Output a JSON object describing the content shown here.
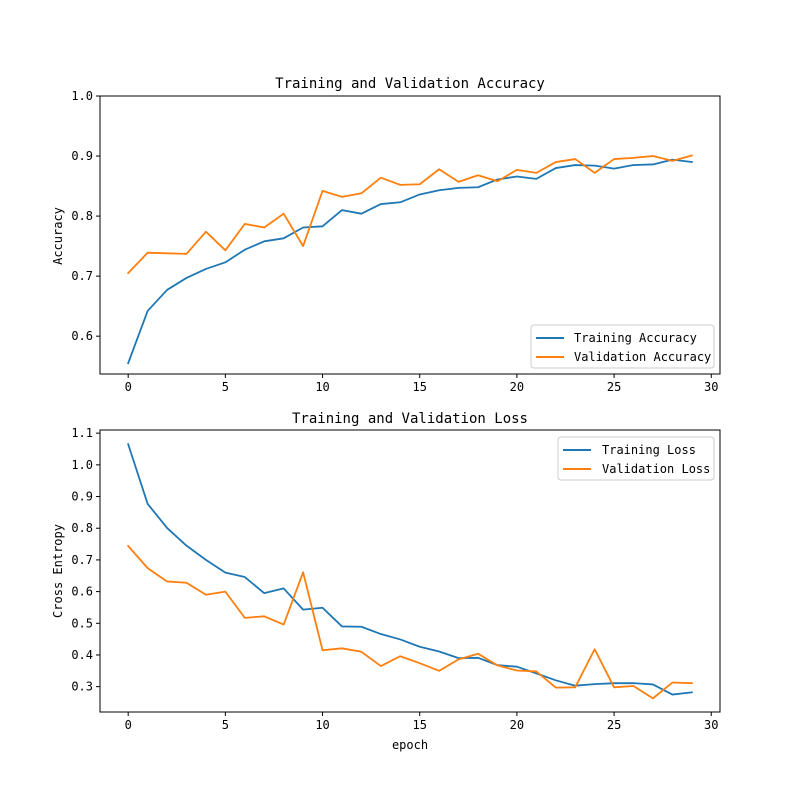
{
  "chart_data": [
    {
      "type": "line",
      "title": "Training and Validation Accuracy",
      "xlabel": "",
      "ylabel": "Accuracy",
      "xlim": [
        -1.45,
        30.45
      ],
      "ylim": [
        0.537,
        1.0
      ],
      "xticks": [
        0,
        5,
        10,
        15,
        20,
        25,
        30
      ],
      "xtick_labels": [
        "0",
        "5",
        "10",
        "15",
        "20",
        "25",
        "30"
      ],
      "yticks": [
        0.6,
        0.7,
        0.8,
        0.9,
        1.0
      ],
      "ytick_labels": [
        "0.6",
        "0.7",
        "0.8",
        "0.9",
        "1.0"
      ],
      "legend_position": "lower-right",
      "x": [
        0,
        1,
        2,
        3,
        4,
        5,
        6,
        7,
        8,
        9,
        10,
        11,
        12,
        13,
        14,
        15,
        16,
        17,
        18,
        19,
        20,
        21,
        22,
        23,
        24,
        25,
        26,
        27,
        28,
        29
      ],
      "series": [
        {
          "name": "Training Accuracy",
          "color": "#1f77b4",
          "values": [
            0.555,
            0.642,
            0.677,
            0.697,
            0.712,
            0.723,
            0.744,
            0.758,
            0.763,
            0.781,
            0.783,
            0.81,
            0.804,
            0.82,
            0.823,
            0.836,
            0.843,
            0.847,
            0.848,
            0.861,
            0.866,
            0.862,
            0.88,
            0.885,
            0.884,
            0.879,
            0.885,
            0.886,
            0.894,
            0.89
          ]
        },
        {
          "name": "Validation Accuracy",
          "color": "#ff7f0e",
          "values": [
            0.705,
            0.739,
            0.738,
            0.737,
            0.774,
            0.743,
            0.787,
            0.781,
            0.804,
            0.75,
            0.842,
            0.832,
            0.838,
            0.864,
            0.852,
            0.853,
            0.878,
            0.857,
            0.868,
            0.858,
            0.877,
            0.872,
            0.89,
            0.895,
            0.872,
            0.895,
            0.897,
            0.9,
            0.892,
            0.901
          ]
        }
      ]
    },
    {
      "type": "line",
      "title": "Training and Validation Loss",
      "xlabel": "epoch",
      "ylabel": "Cross Entropy",
      "xlim": [
        -1.45,
        30.45
      ],
      "ylim": [
        0.22,
        1.11
      ],
      "xticks": [
        0,
        5,
        10,
        15,
        20,
        25,
        30
      ],
      "xtick_labels": [
        "0",
        "5",
        "10",
        "15",
        "20",
        "25",
        "30"
      ],
      "yticks": [
        0.3,
        0.4,
        0.5,
        0.6,
        0.7,
        0.8,
        0.9,
        1.0,
        1.1
      ],
      "ytick_labels": [
        "0.3",
        "0.4",
        "0.5",
        "0.6",
        "0.7",
        "0.8",
        "0.9",
        "1.0",
        "1.1"
      ],
      "legend_position": "upper-right",
      "x": [
        0,
        1,
        2,
        3,
        4,
        5,
        6,
        7,
        8,
        9,
        10,
        11,
        12,
        13,
        14,
        15,
        16,
        17,
        18,
        19,
        20,
        21,
        22,
        23,
        24,
        25,
        26,
        27,
        28,
        29
      ],
      "series": [
        {
          "name": "Training Loss",
          "color": "#1f77b4",
          "values": [
            1.065,
            0.877,
            0.801,
            0.745,
            0.7,
            0.66,
            0.646,
            0.595,
            0.61,
            0.543,
            0.549,
            0.49,
            0.489,
            0.466,
            0.449,
            0.426,
            0.411,
            0.39,
            0.391,
            0.368,
            0.363,
            0.342,
            0.32,
            0.303,
            0.308,
            0.311,
            0.311,
            0.307,
            0.275,
            0.282
          ]
        },
        {
          "name": "Validation Loss",
          "color": "#ff7f0e",
          "values": [
            0.744,
            0.674,
            0.632,
            0.628,
            0.59,
            0.6,
            0.517,
            0.522,
            0.496,
            0.661,
            0.415,
            0.421,
            0.41,
            0.365,
            0.396,
            0.374,
            0.35,
            0.386,
            0.404,
            0.367,
            0.351,
            0.348,
            0.297,
            0.298,
            0.418,
            0.298,
            0.302,
            0.263,
            0.313,
            0.311
          ]
        }
      ]
    }
  ]
}
